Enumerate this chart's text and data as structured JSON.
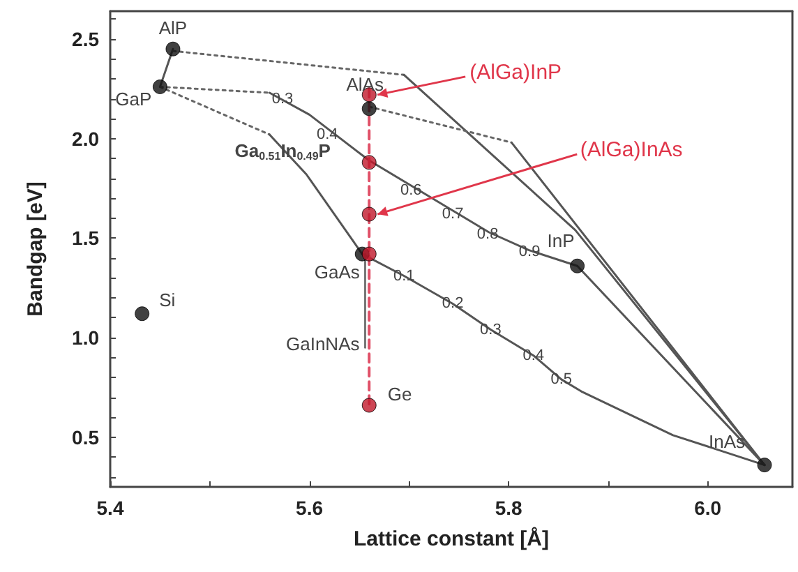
{
  "chart_data": {
    "type": "scatter",
    "xlabel": "Lattice constant [Å]",
    "ylabel": "Bandgap [eV]",
    "xlim": [
      5.4,
      6.085
    ],
    "ylim": [
      0.25,
      2.64
    ],
    "xticks": [
      5.4,
      {
        "value": 5.5,
        "label": null
      },
      5.6,
      {
        "value": 5.7,
        "label": null
      },
      5.8,
      {
        "value": 5.9,
        "label": null
      },
      {
        "value": 6.0,
        "label": "6.0"
      }
    ],
    "yticks": [
      {
        "value": 0.3,
        "label": null
      },
      {
        "value": 0.4,
        "label": null
      },
      0.5,
      {
        "value": 0.6,
        "label": null
      },
      {
        "value": 0.7,
        "label": null
      },
      {
        "value": 0.8,
        "label": null
      },
      {
        "value": 0.9,
        "label": null
      },
      {
        "value": 1.0,
        "label": "1.0"
      },
      {
        "value": 1.1,
        "label": null
      },
      {
        "value": 1.2,
        "label": null
      },
      {
        "value": 1.3,
        "label": null
      },
      {
        "value": 1.4,
        "label": null
      },
      1.5,
      {
        "value": 1.6,
        "label": null
      },
      {
        "value": 1.7,
        "label": null
      },
      {
        "value": 1.8,
        "label": null
      },
      {
        "value": 1.9,
        "label": null
      },
      {
        "value": 2.0,
        "label": "2.0"
      },
      {
        "value": 2.1,
        "label": null
      },
      {
        "value": 2.2,
        "label": null
      },
      {
        "value": 2.3,
        "label": null
      },
      {
        "value": 2.4,
        "label": null
      },
      2.5,
      {
        "value": 2.6,
        "label": null
      }
    ],
    "grid": false,
    "marker": "circle",
    "series": [
      {
        "type": "line",
        "marker": "none",
        "line_style": "solid",
        "color": "#555555",
        "x": [
          5.463,
          5.45
        ],
        "values": [
          2.45,
          2.26
        ]
      },
      {
        "type": "line",
        "marker": "none",
        "line_style": "dotted",
        "color": "#666666",
        "x": [
          5.463,
          5.695
        ],
        "values": [
          2.44,
          2.32
        ]
      },
      {
        "type": "line",
        "marker": "none",
        "line_style": "solid",
        "color": "#555555",
        "x": [
          5.695,
          5.867,
          6.057
        ],
        "values": [
          2.32,
          1.54,
          0.36
        ]
      },
      {
        "type": "line",
        "marker": "none",
        "line_style": "dotted",
        "color": "#666666",
        "x": [
          5.66,
          5.803
        ],
        "values": [
          2.16,
          1.98
        ]
      },
      {
        "type": "line",
        "marker": "none",
        "line_style": "solid",
        "color": "#555555",
        "x": [
          5.803,
          6.057
        ],
        "values": [
          1.98,
          0.36
        ]
      },
      {
        "type": "line",
        "marker": "none",
        "line_style": "dotted",
        "color": "#666666",
        "x": [
          5.45,
          5.56
        ],
        "values": [
          2.26,
          2.23
        ]
      },
      {
        "type": "line",
        "marker": "none",
        "line_style": "solid",
        "color": "#555555",
        "x": [
          5.56,
          5.6,
          5.66,
          5.7,
          5.74,
          5.78,
          5.82,
          5.869
        ],
        "values": [
          2.23,
          2.12,
          1.89,
          1.77,
          1.65,
          1.53,
          1.44,
          1.36
        ]
      },
      {
        "type": "line",
        "marker": "none",
        "line_style": "dotted",
        "color": "#666666",
        "x": [
          5.45,
          5.56
        ],
        "values": [
          2.26,
          2.02
        ]
      },
      {
        "type": "line",
        "marker": "none",
        "line_style": "solid",
        "color": "#555555",
        "x": [
          5.56,
          5.597,
          5.653
        ],
        "values": [
          2.02,
          1.82,
          1.42
        ]
      },
      {
        "type": "line",
        "marker": "none",
        "line_style": "solid",
        "color": "#555555",
        "x": [
          5.653,
          5.695,
          5.744,
          5.782,
          5.825,
          5.853,
          5.873,
          5.965,
          6.057
        ],
        "values": [
          1.42,
          1.31,
          1.17,
          1.04,
          0.91,
          0.79,
          0.73,
          0.51,
          0.36
        ]
      },
      {
        "type": "line",
        "marker": "none",
        "line_style": "solid",
        "color": "#555555",
        "x": [
          5.869,
          6.057
        ],
        "values": [
          1.36,
          0.36
        ]
      },
      {
        "type": "line",
        "marker": "none",
        "line_style": "solid",
        "color": "#777777",
        "x": [
          5.656,
          5.656
        ],
        "values": [
          1.42,
          0.95
        ]
      },
      {
        "type": "line",
        "marker": "none",
        "line_style": "dashed",
        "color": "#e05068",
        "x": [
          5.66,
          5.66
        ],
        "values": [
          2.25,
          0.66
        ]
      },
      {
        "type": "scatter",
        "color": "#111111",
        "x": [
          5.463,
          5.45,
          5.66,
          5.653,
          5.869,
          6.057,
          5.432
        ],
        "values": [
          2.45,
          2.26,
          2.15,
          1.42,
          1.36,
          0.36,
          1.12
        ]
      },
      {
        "type": "scatter",
        "color": "#c0182a",
        "x": [
          5.66,
          5.66,
          5.66,
          5.66,
          5.66
        ],
        "values": [
          2.22,
          1.88,
          1.62,
          1.42,
          0.66
        ]
      }
    ],
    "annotations": [
      {
        "text": "AlP",
        "x": 5.463,
        "y": 2.45
      },
      {
        "text": "GaP",
        "x": 5.45,
        "y": 2.26
      },
      {
        "text": "AlAs",
        "x": 5.66,
        "y": 2.16
      },
      {
        "text": "GaAs",
        "x": 5.653,
        "y": 1.42
      },
      {
        "text": "InP",
        "x": 5.869,
        "y": 1.36
      },
      {
        "text": "InAs",
        "x": 6.057,
        "y": 0.36
      },
      {
        "text": "Si",
        "x": 5.432,
        "y": 1.12
      },
      {
        "text": "Ge",
        "x": 5.66,
        "y": 0.66
      },
      {
        "text": "GaInNAs",
        "x": 5.656,
        "y": 0.97
      },
      {
        "text": "Ga$_{0.51}$In$_{0.49}$P",
        "x": 5.597,
        "y": 1.82
      },
      {
        "text": "0.3",
        "x": 5.573,
        "y": 2.2
      },
      {
        "text": "0.4",
        "x": 5.618,
        "y": 2.02
      },
      {
        "text": "0.6",
        "x": 5.702,
        "y": 1.74
      },
      {
        "text": "0.7",
        "x": 5.744,
        "y": 1.62
      },
      {
        "text": "0.8",
        "x": 5.779,
        "y": 1.52
      },
      {
        "text": "0.9",
        "x": 5.821,
        "y": 1.43
      },
      {
        "text": "0.1",
        "x": 5.695,
        "y": 1.31
      },
      {
        "text": "0.2",
        "x": 5.744,
        "y": 1.17
      },
      {
        "text": "0.3",
        "x": 5.782,
        "y": 1.04
      },
      {
        "text": "0.4",
        "x": 5.825,
        "y": 0.91
      },
      {
        "text": "0.5",
        "x": 5.853,
        "y": 0.79
      },
      {
        "text": "(AlGa)InP",
        "x": 5.66,
        "y": 2.22
      },
      {
        "text": "(AlGa)InAs",
        "x": 5.66,
        "y": 1.62
      }
    ]
  }
}
